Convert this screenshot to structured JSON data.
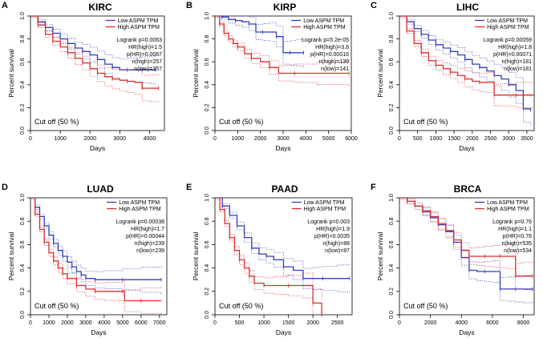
{
  "figure": {
    "panel_count": 6
  },
  "chart_data": [
    {
      "panel_letter": "A",
      "type": "line",
      "title": "KIRC",
      "xlabel": "Days",
      "ylabel": "Percent survival",
      "xlim": [
        0,
        4500
      ],
      "ylim": [
        0,
        1
      ],
      "xticks": [
        "0",
        "1000",
        "2000",
        "3000",
        "4000"
      ],
      "yticks": [
        "0.0",
        "0.2",
        "0.4",
        "0.6",
        "0.8",
        "1.0"
      ],
      "legend": [
        "Low ASPM TPM",
        "High ASPM TPM"
      ],
      "stats": [
        "Logrank p=0.0063",
        "HR(high)=1.5",
        "p(HR)=0.0067",
        "n(high)=257",
        "n(low)=257"
      ],
      "cutoff_label": "Cut off (50 %)",
      "series": [
        {
          "name": "Low ASPM TPM",
          "color": "#2f3fbf",
          "x": [
            0,
            250,
            500,
            750,
            1000,
            1250,
            1500,
            1750,
            2000,
            2250,
            2500,
            2750,
            3000,
            3250,
            3500,
            3750,
            4000,
            4200
          ],
          "y": [
            1.0,
            0.95,
            0.9,
            0.85,
            0.8,
            0.76,
            0.72,
            0.69,
            0.66,
            0.62,
            0.58,
            0.55,
            0.53,
            0.53,
            0.53,
            0.53,
            0.53,
            0.53
          ]
        },
        {
          "name": "High ASPM TPM",
          "color": "#e02a2a",
          "x": [
            0,
            250,
            500,
            750,
            1000,
            1250,
            1500,
            1750,
            2000,
            2250,
            2500,
            2750,
            3000,
            3250,
            3500,
            3750,
            4000,
            4300
          ],
          "y": [
            1.0,
            0.92,
            0.84,
            0.78,
            0.73,
            0.68,
            0.63,
            0.59,
            0.54,
            0.5,
            0.47,
            0.45,
            0.44,
            0.43,
            0.42,
            0.37,
            0.37,
            0.37
          ]
        }
      ]
    },
    {
      "panel_letter": "B",
      "type": "line",
      "title": "KIRP",
      "xlabel": "Days",
      "ylabel": "Percent survival",
      "xlim": [
        0,
        6000
      ],
      "ylim": [
        0,
        1
      ],
      "xticks": [
        "0",
        "1000",
        "2000",
        "3000",
        "4000",
        "5000",
        "6000"
      ],
      "yticks": [
        "0.0",
        "0.2",
        "0.4",
        "0.6",
        "0.8",
        "1.0"
      ],
      "legend": [
        "Low ASPM TPM",
        "High ASPM TPM"
      ],
      "stats": [
        "Logrank p=5.2e-05",
        "HR(high)=3.8",
        "p(HR)=0.00016",
        "n(high)=139",
        "n(low)=141"
      ],
      "cutoff_label": "Cut off (50 %)",
      "series": [
        {
          "name": "Low ASPM TPM",
          "color": "#2f3fbf",
          "x": [
            0,
            300,
            600,
            900,
            1200,
            1500,
            1800,
            2100,
            2400,
            2700,
            3000,
            3300,
            3600,
            3900
          ],
          "y": [
            1.0,
            0.99,
            0.97,
            0.96,
            0.95,
            0.93,
            0.86,
            0.86,
            0.86,
            0.82,
            0.68,
            0.68,
            0.68,
            0.68
          ]
        },
        {
          "name": "High ASPM TPM",
          "color": "#e02a2a",
          "x": [
            0,
            200,
            400,
            600,
            800,
            1000,
            1300,
            1600,
            2000,
            2400,
            2800,
            3500,
            4500,
            5900
          ],
          "y": [
            1.0,
            0.93,
            0.85,
            0.8,
            0.76,
            0.73,
            0.67,
            0.63,
            0.6,
            0.55,
            0.5,
            0.5,
            0.5,
            0.5
          ]
        }
      ]
    },
    {
      "panel_letter": "C",
      "type": "line",
      "title": "LIHC",
      "xlabel": "Days",
      "ylabel": "Percent survival",
      "xlim": [
        0,
        3700
      ],
      "ylim": [
        0,
        1
      ],
      "xticks": [
        "0",
        "500",
        "1000",
        "1500",
        "2000",
        "2500",
        "3000",
        "3500"
      ],
      "yticks": [
        "0.0",
        "0.2",
        "0.4",
        "0.6",
        "0.8",
        "1.0"
      ],
      "legend": [
        "Low ASPM TPM",
        "High ASPM TPM"
      ],
      "stats": [
        "Logrank p=0.00059",
        "HR(high)=1.8",
        "p(HR)=0.00071",
        "n(high)=181",
        "n(low)=181"
      ],
      "cutoff_label": "Cut off (50 %)",
      "series": [
        {
          "name": "Low ASPM TPM",
          "color": "#2f3fbf",
          "x": [
            0,
            200,
            400,
            600,
            800,
            1000,
            1200,
            1400,
            1600,
            1800,
            2000,
            2200,
            2400,
            2600,
            2800,
            3000,
            3200,
            3400,
            3600
          ],
          "y": [
            1.0,
            0.95,
            0.89,
            0.84,
            0.79,
            0.75,
            0.72,
            0.69,
            0.66,
            0.62,
            0.58,
            0.55,
            0.52,
            0.48,
            0.45,
            0.4,
            0.35,
            0.19,
            0.17
          ]
        },
        {
          "name": "High ASPM TPM",
          "color": "#e02a2a",
          "x": [
            0,
            200,
            400,
            600,
            800,
            1000,
            1200,
            1400,
            1600,
            1800,
            2000,
            2200,
            2400,
            2600,
            2800,
            3200,
            3700
          ],
          "y": [
            1.0,
            0.87,
            0.76,
            0.68,
            0.61,
            0.57,
            0.54,
            0.51,
            0.48,
            0.45,
            0.43,
            0.42,
            0.42,
            0.31,
            0.31,
            0.31,
            0.31
          ]
        }
      ]
    },
    {
      "panel_letter": "D",
      "type": "line",
      "title": "LUAD",
      "xlabel": "Days",
      "ylabel": "Percent survival",
      "xlim": [
        0,
        7400
      ],
      "ylim": [
        0,
        1
      ],
      "xticks": [
        "0",
        "1000",
        "2000",
        "3000",
        "4000",
        "5000",
        "6000",
        "7000"
      ],
      "yticks": [
        "0.0",
        "0.2",
        "0.4",
        "0.6",
        "0.8",
        "1.0"
      ],
      "legend": [
        "Low ASPM TPM",
        "High ASPM TPM"
      ],
      "stats": [
        "Logrank p=0.00038",
        "HR(high)=1.7",
        "p(HR)=0.00044",
        "n(high)=239",
        "n(low)=239"
      ],
      "cutoff_label": "Cut off (50 %)",
      "series": [
        {
          "name": "Low ASPM TPM",
          "color": "#2f3fbf",
          "x": [
            0,
            250,
            500,
            750,
            1000,
            1250,
            1500,
            1750,
            2000,
            2250,
            2500,
            2750,
            3000,
            3500,
            4000,
            5000,
            6000,
            7100
          ],
          "y": [
            1.0,
            0.92,
            0.84,
            0.76,
            0.68,
            0.61,
            0.55,
            0.5,
            0.45,
            0.41,
            0.37,
            0.34,
            0.31,
            0.3,
            0.3,
            0.3,
            0.3,
            0.3
          ]
        },
        {
          "name": "High ASPM TPM",
          "color": "#e02a2a",
          "x": [
            0,
            250,
            500,
            750,
            1000,
            1250,
            1500,
            1750,
            2000,
            2500,
            3000,
            3500,
            4000,
            5000,
            5100,
            6000,
            7100
          ],
          "y": [
            1.0,
            0.86,
            0.73,
            0.62,
            0.53,
            0.46,
            0.4,
            0.35,
            0.31,
            0.25,
            0.22,
            0.2,
            0.2,
            0.2,
            0.12,
            0.12,
            0.12
          ]
        }
      ]
    },
    {
      "panel_letter": "E",
      "type": "line",
      "title": "PAAD",
      "xlabel": "Days",
      "ylabel": "Percent survival",
      "xlim": [
        0,
        2800
      ],
      "ylim": [
        0,
        1
      ],
      "xticks": [
        "0",
        "500",
        "1000",
        "1500",
        "2000",
        "2500"
      ],
      "yticks": [
        "0.0",
        "0.2",
        "0.4",
        "0.6",
        "0.8",
        "1.0"
      ],
      "legend": [
        "Low ASPM TPM",
        "High ASPM TPM"
      ],
      "stats": [
        "Logrank p=0.003",
        "HR(high)=1.9",
        "p(HR)=0.0035",
        "n(high)=88",
        "n(low)=87"
      ],
      "cutoff_label": "Cut off (50 %)",
      "series": [
        {
          "name": "Low ASPM TPM",
          "color": "#2f3fbf",
          "x": [
            0,
            150,
            300,
            450,
            600,
            750,
            900,
            1050,
            1200,
            1400,
            1600,
            1800,
            2000,
            2200,
            2500,
            2750
          ],
          "y": [
            1.0,
            0.93,
            0.85,
            0.76,
            0.66,
            0.57,
            0.52,
            0.5,
            0.47,
            0.41,
            0.38,
            0.31,
            0.31,
            0.31,
            0.31,
            0.31
          ]
        },
        {
          "name": "High ASPM TPM",
          "color": "#e02a2a",
          "x": [
            0,
            100,
            200,
            300,
            400,
            500,
            600,
            700,
            800,
            1000,
            1200,
            1500,
            1800,
            2000,
            2100,
            2180
          ],
          "y": [
            1.0,
            0.9,
            0.78,
            0.66,
            0.55,
            0.47,
            0.4,
            0.33,
            0.27,
            0.25,
            0.25,
            0.25,
            0.25,
            0.1,
            0.1,
            0.0
          ]
        }
      ]
    },
    {
      "panel_letter": "F",
      "type": "line",
      "title": "BRCA",
      "xlabel": "Days",
      "ylabel": "Percent survival",
      "xlim": [
        0,
        8700
      ],
      "ylim": [
        0,
        1
      ],
      "xticks": [
        "0",
        "2000",
        "4000",
        "6000",
        "8000"
      ],
      "yticks": [
        "0.0",
        "0.2",
        "0.4",
        "0.6",
        "0.8",
        "1.0"
      ],
      "legend": [
        "Low ASPM TPM",
        "High ASPM TPM"
      ],
      "stats": [
        "Logrank p=0.76",
        "HR(high)=1.1",
        "p(HR)=0.76",
        "n(high)=535",
        "n(low)=534"
      ],
      "cutoff_label": "Cut off (50 %)",
      "series": [
        {
          "name": "Low ASPM TPM",
          "color": "#2f3fbf",
          "x": [
            0,
            500,
            1000,
            1500,
            2000,
            2500,
            3000,
            3500,
            4000,
            4500,
            5000,
            5500,
            6000,
            6500,
            7000,
            7500,
            8000,
            8600
          ],
          "y": [
            1.0,
            0.97,
            0.93,
            0.88,
            0.83,
            0.77,
            0.71,
            0.62,
            0.49,
            0.38,
            0.37,
            0.37,
            0.37,
            0.22,
            0.22,
            0.22,
            0.22,
            0.22
          ]
        },
        {
          "name": "High ASPM TPM",
          "color": "#e02a2a",
          "x": [
            0,
            500,
            1000,
            1500,
            2000,
            2500,
            3000,
            3500,
            4000,
            4500,
            5000,
            5500,
            6000,
            6500,
            7000,
            7500,
            8000,
            8600
          ],
          "y": [
            1.0,
            0.97,
            0.93,
            0.89,
            0.84,
            0.78,
            0.72,
            0.64,
            0.55,
            0.5,
            0.5,
            0.5,
            0.5,
            0.5,
            0.5,
            0.33,
            0.33,
            0.33
          ]
        }
      ]
    }
  ]
}
